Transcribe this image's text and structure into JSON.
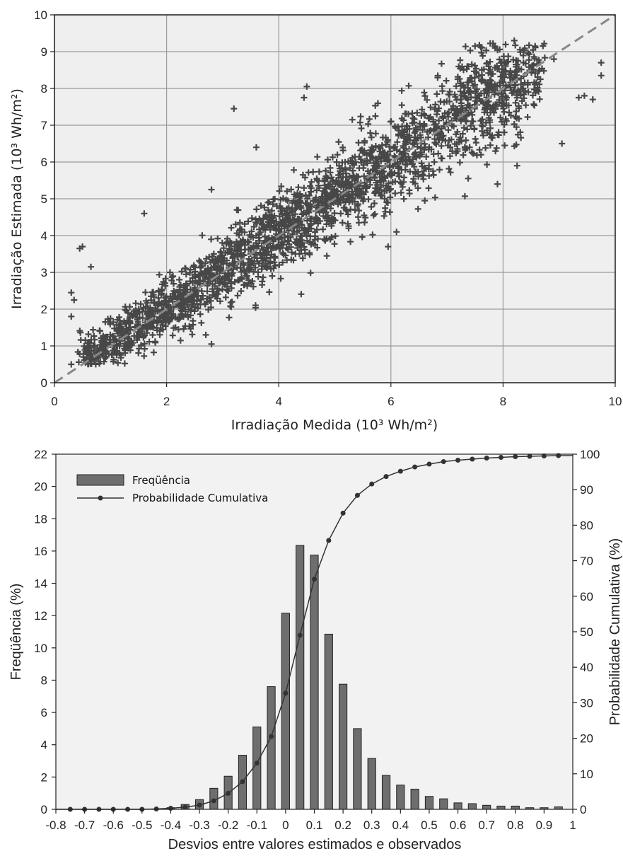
{
  "chart_data": [
    {
      "type": "scatter",
      "xlabel": "Irradiação Medida (10³ Wh/m²)",
      "ylabel": "Irradiação Estimada (10³ Wh/m²)",
      "xlim": [
        0,
        10
      ],
      "ylim": [
        0,
        10
      ],
      "xticks": [
        "0",
        "2",
        "4",
        "6",
        "8",
        "10"
      ],
      "yticks": [
        "0",
        "1",
        "2",
        "3",
        "4",
        "5",
        "6",
        "7",
        "8",
        "9",
        "10"
      ],
      "grid": true,
      "marker": "+",
      "reference_line": {
        "type": "identity",
        "style": "dashed",
        "from": [
          0,
          0
        ],
        "to": [
          10,
          10
        ]
      },
      "outliers": [
        {
          "x": 3.2,
          "y": 7.45
        },
        {
          "x": 0.5,
          "y": 3.7
        },
        {
          "x": 0.45,
          "y": 3.65
        },
        {
          "x": 0.65,
          "y": 3.15
        },
        {
          "x": 0.3,
          "y": 2.45
        },
        {
          "x": 0.35,
          "y": 2.25
        },
        {
          "x": 0.3,
          "y": 1.8
        },
        {
          "x": 0.3,
          "y": 0.5
        },
        {
          "x": 9.75,
          "y": 8.7
        },
        {
          "x": 9.75,
          "y": 8.35
        },
        {
          "x": 9.45,
          "y": 7.8
        },
        {
          "x": 9.6,
          "y": 7.7
        },
        {
          "x": 9.35,
          "y": 7.75
        },
        {
          "x": 9.05,
          "y": 6.5
        },
        {
          "x": 2.8,
          "y": 1.05
        },
        {
          "x": 2.7,
          "y": 1.3
        },
        {
          "x": 1.6,
          "y": 4.6
        },
        {
          "x": 4.5,
          "y": 8.05
        },
        {
          "x": 4.45,
          "y": 7.75
        },
        {
          "x": 7.5,
          "y": 9.15
        },
        {
          "x": 8.2,
          "y": 9.3
        },
        {
          "x": 7.9,
          "y": 5.4
        },
        {
          "x": 8.25,
          "y": 5.9
        },
        {
          "x": 6.1,
          "y": 4.1
        },
        {
          "x": 5.95,
          "y": 3.7
        },
        {
          "x": 3.6,
          "y": 6.4
        },
        {
          "x": 2.8,
          "y": 5.25
        }
      ]
    },
    {
      "type": "bar",
      "xlabel": "Desvios entre valores estimados e observados",
      "ylabel": "Freqüência (%)",
      "y2label": "Probabilidade Cumulativa (%)",
      "xlim": [
        -0.8,
        1.0
      ],
      "ylim": [
        0,
        22
      ],
      "y2lim": [
        0,
        100
      ],
      "xticks": [
        "-0.8",
        "-0.7",
        "-0.6",
        "-0.5",
        "-0.4",
        "-0.3",
        "-0.2",
        "-0.1",
        "0",
        "0.1",
        "0.2",
        "0.3",
        "0.4",
        "0.5",
        "0.6",
        "0.7",
        "0.8",
        "0.9",
        "1"
      ],
      "yticks": [
        "0",
        "2",
        "4",
        "6",
        "8",
        "10",
        "12",
        "14",
        "16",
        "18",
        "20",
        "22"
      ],
      "y2ticks": [
        "0",
        "10",
        "20",
        "30",
        "40",
        "50",
        "60",
        "70",
        "80",
        "90",
        "100"
      ],
      "legend_position": "top-left",
      "x": [
        -0.75,
        -0.7,
        -0.65,
        -0.6,
        -0.55,
        -0.5,
        -0.45,
        -0.4,
        -0.35,
        -0.3,
        -0.25,
        -0.2,
        -0.15,
        -0.1,
        -0.05,
        0.0,
        0.05,
        0.1,
        0.15,
        0.2,
        0.25,
        0.3,
        0.35,
        0.4,
        0.45,
        0.5,
        0.55,
        0.6,
        0.65,
        0.7,
        0.75,
        0.8,
        0.85,
        0.9,
        0.95
      ],
      "series": [
        {
          "name": "Freqüência",
          "type": "bar",
          "axis": "left",
          "values": [
            0,
            0,
            0,
            0,
            0,
            0,
            0.02,
            0.1,
            0.3,
            0.6,
            1.3,
            2.05,
            3.35,
            5.1,
            7.6,
            12.15,
            16.35,
            15.75,
            10.85,
            7.75,
            5.0,
            3.15,
            2.1,
            1.5,
            1.25,
            0.8,
            0.65,
            0.4,
            0.35,
            0.25,
            0.2,
            0.2,
            0.1,
            0.1,
            0.15
          ]
        },
        {
          "name": "Probabilidade Cumulativa",
          "type": "line",
          "axis": "right",
          "values": [
            0,
            0,
            0,
            0,
            0,
            0,
            0.1,
            0.3,
            0.6,
            1.2,
            2.4,
            4.5,
            7.8,
            13.0,
            20.5,
            32.7,
            49.0,
            64.8,
            75.7,
            83.4,
            88.4,
            91.6,
            93.7,
            95.2,
            96.4,
            97.2,
            97.9,
            98.3,
            98.6,
            98.9,
            99.1,
            99.3,
            99.4,
            99.5,
            99.6
          ]
        }
      ]
    }
  ]
}
